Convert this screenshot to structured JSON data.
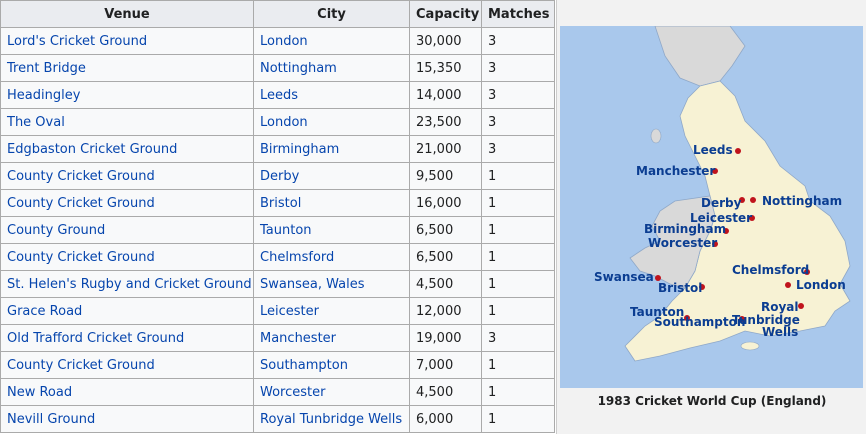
{
  "table": {
    "headers": [
      "Venue",
      "City",
      "Capacity",
      "Matches"
    ],
    "rows": [
      {
        "venue": "Lord's Cricket Ground",
        "city": "London",
        "capacity": "30,000",
        "matches": "3"
      },
      {
        "venue": "Trent Bridge",
        "city": "Nottingham",
        "capacity": "15,350",
        "matches": "3"
      },
      {
        "venue": "Headingley",
        "city": "Leeds",
        "capacity": "14,000",
        "matches": "3"
      },
      {
        "venue": "The Oval",
        "city": "London",
        "capacity": "23,500",
        "matches": "3"
      },
      {
        "venue": "Edgbaston Cricket Ground",
        "city": "Birmingham",
        "capacity": "21,000",
        "matches": "3"
      },
      {
        "venue": "County Cricket Ground",
        "city": "Derby",
        "capacity": "9,500",
        "matches": "1"
      },
      {
        "venue": "County Cricket Ground",
        "city": "Bristol",
        "capacity": "16,000",
        "matches": "1"
      },
      {
        "venue": "County Ground",
        "city": "Taunton",
        "capacity": "6,500",
        "matches": "1"
      },
      {
        "venue": "County Cricket Ground",
        "city": "Chelmsford",
        "capacity": "6,500",
        "matches": "1"
      },
      {
        "venue": "St. Helen's Rugby and Cricket Ground",
        "city": "Swansea, Wales",
        "capacity": "4,500",
        "matches": "1"
      },
      {
        "venue": "Grace Road",
        "city": "Leicester",
        "capacity": "12,000",
        "matches": "1"
      },
      {
        "venue": "Old Trafford Cricket Ground",
        "city": "Manchester",
        "capacity": "19,000",
        "matches": "3"
      },
      {
        "venue": "County Cricket Ground",
        "city": "Southampton",
        "capacity": "7,000",
        "matches": "1"
      },
      {
        "venue": "New Road",
        "city": "Worcester",
        "capacity": "4,500",
        "matches": "1"
      },
      {
        "venue": "Nevill Ground",
        "city": "Royal Tunbridge Wells",
        "capacity": "6,000",
        "matches": "1"
      }
    ]
  },
  "map": {
    "caption": "1983 Cricket World Cup (England)",
    "labels": {
      "leeds": "Leeds",
      "manchester": "Manchester",
      "derby": "Derby",
      "nottingham": "Nottingham",
      "leicester": "Leicester",
      "birmingham": "Birmingham",
      "worcester": "Worcester",
      "swansea": "Swansea",
      "bristol": "Bristol",
      "chelmsford": "Chelmsford",
      "london": "London",
      "taunton": "Taunton",
      "southampton": "Southampton",
      "royal_tunbridge_wells_1": "Royal",
      "royal_tunbridge_wells_2": "Tunbridge",
      "royal_tunbridge_wells_3": "Wells"
    },
    "colors": {
      "sea": "#a9c8ec",
      "land": "#f7f2d4",
      "wales": "#d9d9d9",
      "marker": "#c0141c",
      "label": "#0b3d91"
    }
  }
}
